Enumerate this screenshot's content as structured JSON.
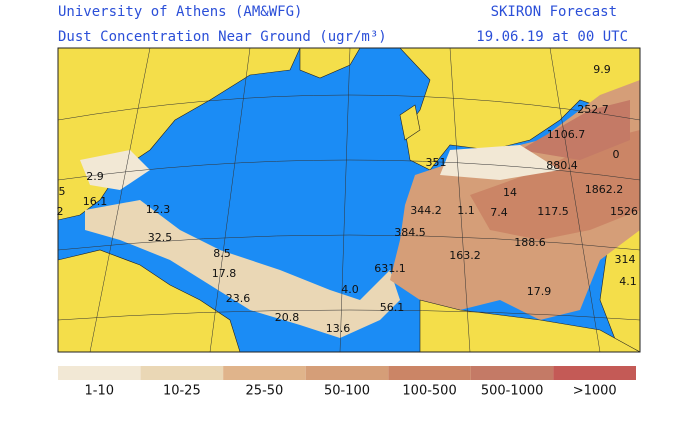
{
  "header": {
    "institution": "University of Athens (AM&WFG)",
    "product": "SKIRON Forecast",
    "variable": "Dust Concentration Near Ground (ugr/m³)",
    "time": "19.06.19 at 00 UTC"
  },
  "map_labels": [
    "9.9",
    "252.7",
    "1106.7",
    "0",
    "351",
    "880.4",
    "1862.2",
    "2.9",
    "14",
    "1.1",
    "7.4",
    "117.5",
    "1526",
    "16.1",
    "12.3",
    "344.2",
    "384.5",
    "188.6",
    "32.5",
    "8.5",
    "17.8",
    "163.2",
    "631.1",
    "314",
    "4.0",
    "23.6",
    "17.9",
    "4.1",
    "20.8",
    "56.1",
    "13.6",
    "5",
    "2"
  ],
  "legend": [
    {
      "label": "1-10",
      "color": "#f2e8d5"
    },
    {
      "label": "10-25",
      "color": "#ead7b5"
    },
    {
      "label": "25-50",
      "color": "#e0b48b"
    },
    {
      "label": "50-100",
      "color": "#d59e78"
    },
    {
      "label": "100-500",
      "color": "#cb8566"
    },
    {
      "label": "500-1000",
      "color": "#c47a66"
    },
    {
      "label": ">1000",
      "color": "#c45a56"
    }
  ]
}
